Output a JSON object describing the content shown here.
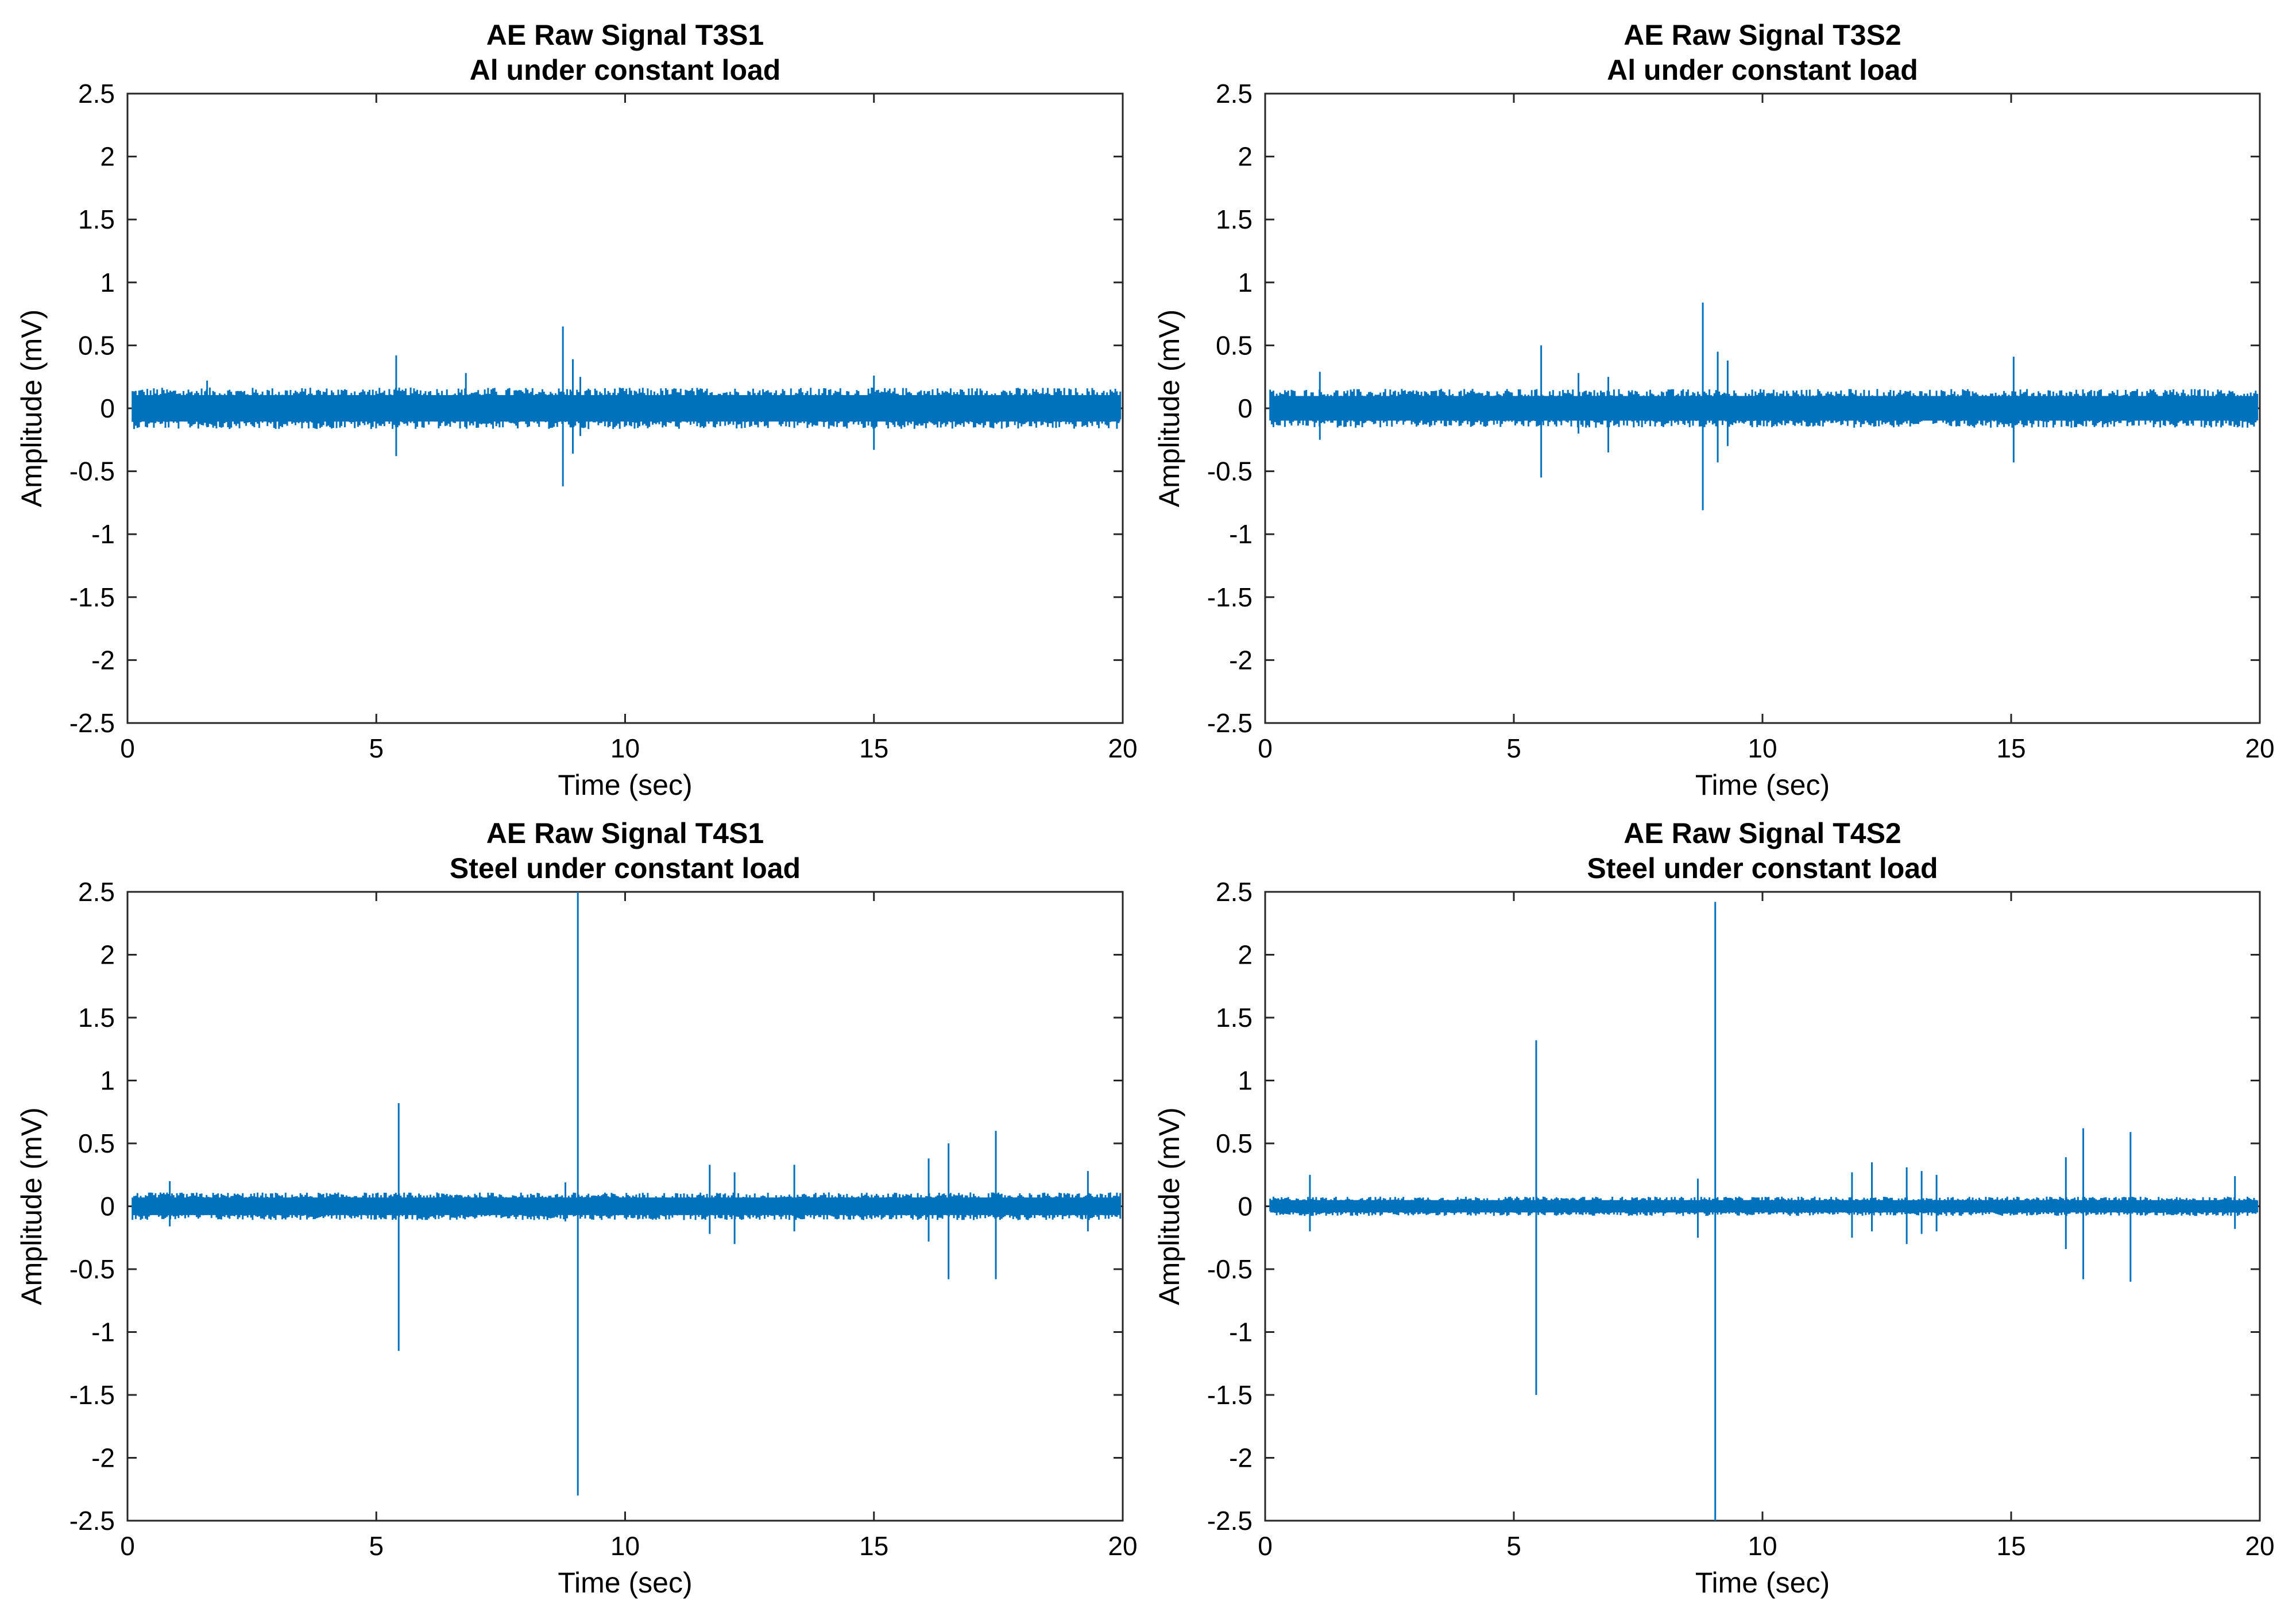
{
  "chart_data": [
    {
      "type": "line",
      "title": "AE Raw Signal T3S1",
      "subtitle": "Al under constant load",
      "xlabel": "Time (sec)",
      "ylabel": "Amplitude (mV)",
      "xlim": [
        0,
        20
      ],
      "ylim": [
        -2.5,
        2.5
      ],
      "xticks": [
        "0",
        "5",
        "10",
        "15",
        "20"
      ],
      "yticks": [
        "2.5",
        "2",
        "1.5",
        "1",
        "0.5",
        "0",
        "-0.5",
        "-1",
        "-1.5",
        "-2",
        "-2.5"
      ],
      "color": "#0072BD",
      "noise_band": {
        "low": -0.15,
        "high": 0.15
      },
      "series": [
        {
          "name": "AE raw signal",
          "spikes": [
            {
              "t": 1.6,
              "high": 0.22,
              "low": -0.15
            },
            {
              "t": 5.4,
              "high": 0.42,
              "low": -0.38
            },
            {
              "t": 6.8,
              "high": 0.28,
              "low": -0.15
            },
            {
              "t": 8.75,
              "high": 0.65,
              "low": -0.62
            },
            {
              "t": 8.95,
              "high": 0.39,
              "low": -0.36
            },
            {
              "t": 9.1,
              "high": 0.25,
              "low": -0.22
            },
            {
              "t": 15.0,
              "high": 0.26,
              "low": -0.33
            }
          ]
        }
      ]
    },
    {
      "type": "line",
      "title": "AE Raw Signal T3S2",
      "subtitle": "Al under constant load",
      "xlabel": "Time (sec)",
      "ylabel": "Amplitude (mV)",
      "xlim": [
        0,
        20
      ],
      "ylim": [
        -2.5,
        2.5
      ],
      "xticks": [
        "0",
        "5",
        "10",
        "15",
        "20"
      ],
      "yticks": [
        "2.5",
        "2",
        "1.5",
        "1",
        "0.5",
        "0",
        "-0.5",
        "-1",
        "-1.5",
        "-2",
        "-2.5"
      ],
      "color": "#0072BD",
      "noise_band": {
        "low": -0.14,
        "high": 0.14
      },
      "series": [
        {
          "name": "AE raw signal",
          "spikes": [
            {
              "t": 1.1,
              "high": 0.29,
              "low": -0.25
            },
            {
              "t": 5.55,
              "high": 0.5,
              "low": -0.55
            },
            {
              "t": 6.3,
              "high": 0.28,
              "low": -0.2
            },
            {
              "t": 6.9,
              "high": 0.25,
              "low": -0.35
            },
            {
              "t": 8.8,
              "high": 0.84,
              "low": -0.81
            },
            {
              "t": 9.1,
              "high": 0.45,
              "low": -0.43
            },
            {
              "t": 9.3,
              "high": 0.38,
              "low": -0.3
            },
            {
              "t": 15.05,
              "high": 0.41,
              "low": -0.43
            }
          ]
        }
      ]
    },
    {
      "type": "line",
      "title": "AE Raw Signal T4S1",
      "subtitle": "Steel under constant load",
      "xlabel": "Time (sec)",
      "ylabel": "Amplitude (mV)",
      "xlim": [
        0,
        20
      ],
      "ylim": [
        -2.5,
        2.5
      ],
      "xticks": [
        "0",
        "5",
        "10",
        "15",
        "20"
      ],
      "yticks": [
        "2.5",
        "2",
        "1.5",
        "1",
        "0.5",
        "0",
        "-0.5",
        "-1",
        "-1.5",
        "-2",
        "-2.5"
      ],
      "color": "#0072BD",
      "noise_band": {
        "low": -0.1,
        "high": 0.1
      },
      "series": [
        {
          "name": "AE raw signal",
          "spikes": [
            {
              "t": 0.85,
              "high": 0.2,
              "low": -0.16
            },
            {
              "t": 5.45,
              "high": 0.82,
              "low": -1.15
            },
            {
              "t": 8.8,
              "high": 0.19,
              "low": -0.12
            },
            {
              "t": 9.05,
              "high": 2.5,
              "low": -2.3
            },
            {
              "t": 11.7,
              "high": 0.33,
              "low": -0.22
            },
            {
              "t": 12.2,
              "high": 0.27,
              "low": -0.3
            },
            {
              "t": 13.4,
              "high": 0.33,
              "low": -0.2
            },
            {
              "t": 16.1,
              "high": 0.38,
              "low": -0.28
            },
            {
              "t": 16.5,
              "high": 0.5,
              "low": -0.58
            },
            {
              "t": 17.45,
              "high": 0.6,
              "low": -0.58
            },
            {
              "t": 19.3,
              "high": 0.28,
              "low": -0.2
            }
          ]
        }
      ]
    },
    {
      "type": "line",
      "title": "AE Raw Signal T4S2",
      "subtitle": "Steel under constant load",
      "xlabel": "Time (sec)",
      "ylabel": "Amplitude (mV)",
      "xlim": [
        0,
        20
      ],
      "ylim": [
        -2.5,
        2.5
      ],
      "xticks": [
        "0",
        "5",
        "10",
        "15",
        "20"
      ],
      "yticks": [
        "2.5",
        "2",
        "1.5",
        "1",
        "0.5",
        "0",
        "-0.5",
        "-1",
        "-1.5",
        "-2",
        "-2.5"
      ],
      "color": "#0072BD",
      "noise_band": {
        "low": -0.07,
        "high": 0.07
      },
      "series": [
        {
          "name": "AE raw signal",
          "spikes": [
            {
              "t": 0.9,
              "high": 0.25,
              "low": -0.2
            },
            {
              "t": 5.45,
              "high": 1.32,
              "low": -1.5
            },
            {
              "t": 8.7,
              "high": 0.22,
              "low": -0.25
            },
            {
              "t": 9.05,
              "high": 2.42,
              "low": -2.5
            },
            {
              "t": 11.8,
              "high": 0.27,
              "low": -0.25
            },
            {
              "t": 12.2,
              "high": 0.35,
              "low": -0.2
            },
            {
              "t": 12.9,
              "high": 0.31,
              "low": -0.3
            },
            {
              "t": 13.2,
              "high": 0.28,
              "low": -0.22
            },
            {
              "t": 13.5,
              "high": 0.25,
              "low": -0.2
            },
            {
              "t": 16.1,
              "high": 0.39,
              "low": -0.34
            },
            {
              "t": 16.45,
              "high": 0.62,
              "low": -0.58
            },
            {
              "t": 17.4,
              "high": 0.59,
              "low": -0.6
            },
            {
              "t": 19.5,
              "high": 0.24,
              "low": -0.18
            }
          ]
        }
      ]
    }
  ]
}
